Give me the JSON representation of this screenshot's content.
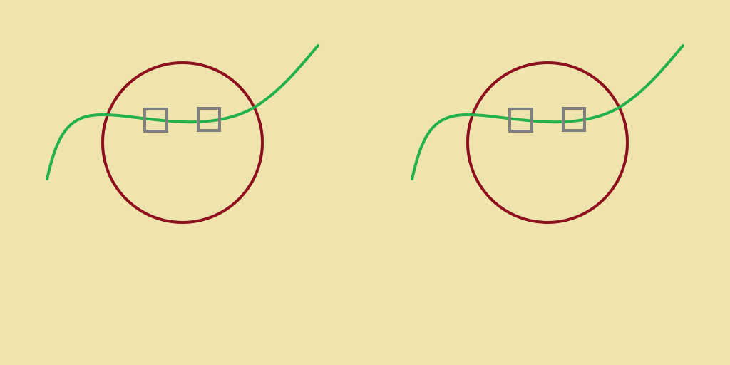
{
  "colors": {
    "background": "#EFE3AE",
    "circle": "#8E0F1E",
    "curve": "#22B14C",
    "square": "#7F7F7F"
  },
  "panels": [
    {
      "name": "panel-left",
      "shapes": [
        "circle",
        "curve",
        "square",
        "square"
      ]
    },
    {
      "name": "panel-right",
      "shapes": [
        "circle",
        "curve",
        "square",
        "square"
      ]
    }
  ]
}
